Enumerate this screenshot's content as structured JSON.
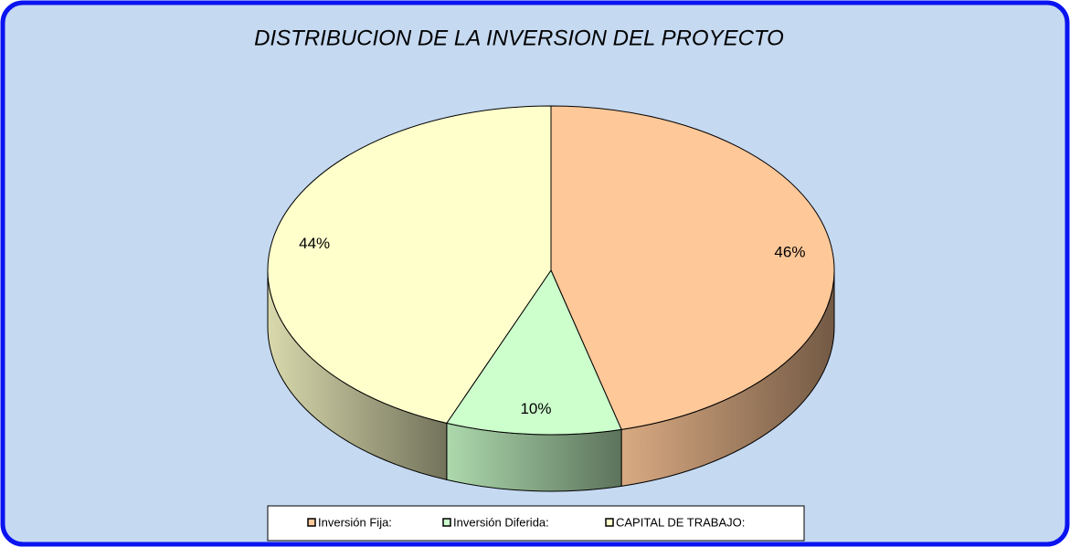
{
  "chart_data": {
    "type": "pie",
    "title": "DISTRIBUCION DE LA INVERSION DEL PROYECTO",
    "categories": [
      "Inversión Fija:",
      "Inversión Diferida:",
      "CAPITAL DE TRABAJO:"
    ],
    "values": [
      46,
      10,
      44
    ],
    "value_labels": [
      "46%",
      "10%",
      "44%"
    ],
    "colors": [
      "#ffc899",
      "#ccffcc",
      "#ffffcc"
    ],
    "legend": "bottom"
  }
}
